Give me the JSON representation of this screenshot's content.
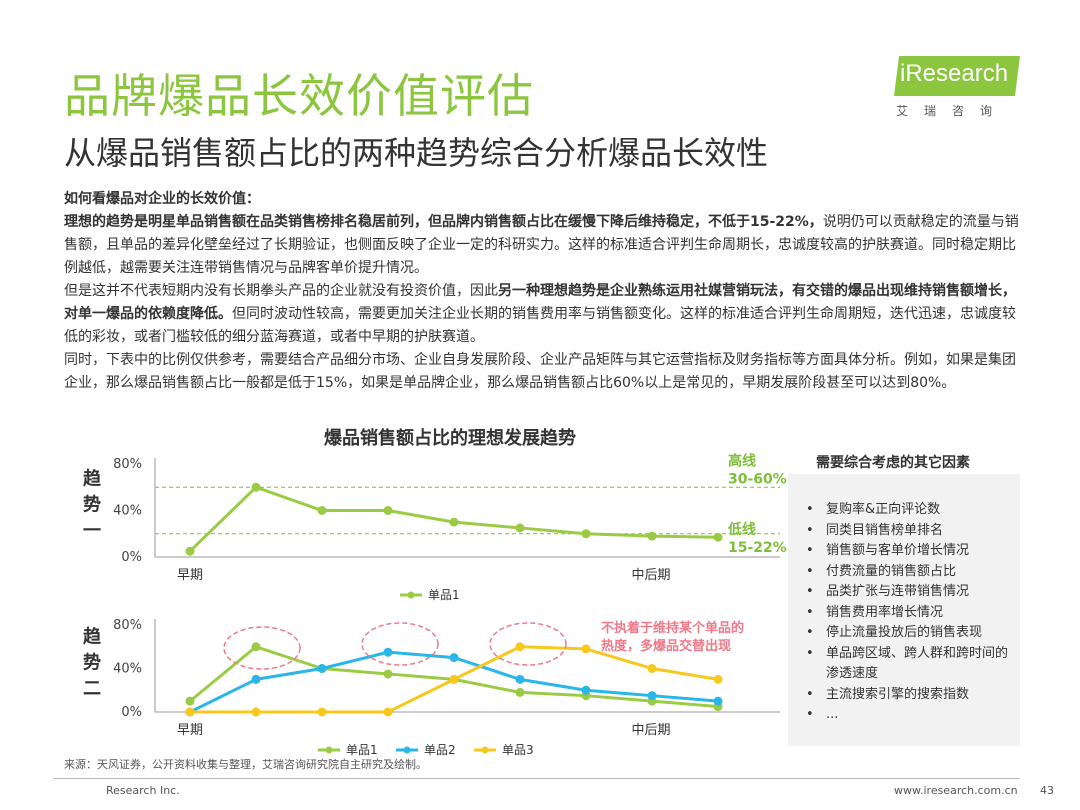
{
  "header": {
    "title": "品牌爆品长效价值评估",
    "subtitle": "从爆品销售额占比的两种趋势综合分析爆品长效性"
  },
  "logo": {
    "name": "iResearch",
    "tagline": "艾瑞咨询",
    "brand_color": "#8cc63e"
  },
  "body": {
    "heading": "如何看爆品对企业的长效价值：",
    "p1_bold": "理想的趋势是明星单品销售额在品类销售榜排名稳居前列，但品牌内销售额占比在缓慢下降后维持稳定，不低于15-22%，",
    "p1_rest": "说明仍可以贡献稳定的流量与销售额，且单品的差异化壁垒经过了长期验证，也侧面反映了企业一定的科研实力。这样的标准适合评判生命周期长，忠诚度较高的护肤赛道。同时稳定期比例越低，越需要关注连带销售情况与品牌客单价提升情况。",
    "p2_start": "但是这并不代表短期内没有长期拳头产品的企业就没有投资价值，因此",
    "p2_bold": "另一种理想趋势是企业熟练运用社媒营销玩法，有交错的爆品出现维持销售额增长，对单一爆品的依赖度降低。",
    "p2_rest": "但同时波动性较高，需要更加关注企业长期的销售费用率与销售额变化。这样的标准适合评判生命周期短，迭代迅速，忠诚度较低的彩妆，或者门槛较低的细分蓝海赛道，或者中早期的护肤赛道。",
    "p3": "同时，下表中的比例仅供参考，需要结合产品细分市场、企业自身发展阶段、企业产品矩阵与其它运营指标及财务指标等方面具体分析。例如，如果是集团企业，那么爆品销售额占比一般都是低于15%，如果是单品牌企业，那么爆品销售额占比60%以上是常见的，早期发展阶段甚至可以达到80%。"
  },
  "chart_data": {
    "type": "line",
    "title": "爆品销售额占比的理想发展趋势",
    "colors": {
      "s1": "#9bcb44",
      "s2": "#29b6e8",
      "s3": "#f7c81d",
      "annot": "#f07a8a",
      "band": "#7fbe3b"
    },
    "panels": [
      {
        "label": "趋势一",
        "x_start_label": "早期",
        "x_mid_label": "中后期",
        "yticks": [
          "80%",
          "40%",
          "0%"
        ],
        "ylim": [
          0,
          80
        ],
        "ref_lines": [
          60,
          20
        ],
        "annotations": [
          {
            "line1": "高线",
            "line2": "30-60%"
          },
          {
            "line1": "低线",
            "line2": "15-22%"
          }
        ],
        "series": [
          {
            "name": "单品1",
            "values": [
              5,
              60,
              40,
              40,
              30,
              25,
              20,
              18,
              17
            ]
          }
        ]
      },
      {
        "label": "趋势二",
        "x_start_label": "早期",
        "x_mid_label": "中后期",
        "yticks": [
          "80%",
          "40%",
          "0%"
        ],
        "ylim": [
          0,
          80
        ],
        "note_line1": "不执着于维持某个单品的",
        "note_line2": "热度，多爆品交替出现",
        "series": [
          {
            "name": "单品1",
            "values": [
              10,
              60,
              40,
              35,
              30,
              18,
              15,
              10,
              5
            ]
          },
          {
            "name": "单品2",
            "values": [
              0,
              30,
              40,
              55,
              50,
              30,
              20,
              15,
              10
            ]
          },
          {
            "name": "单品3",
            "values": [
              0,
              0,
              0,
              0,
              30,
              60,
              58,
              40,
              30
            ]
          }
        ]
      }
    ]
  },
  "side_panel": {
    "title": "需要综合考虑的其它因素",
    "items": [
      "复购率&正向评论数",
      "同类目销售榜单排名",
      "销售额与客单价增长情况",
      "付费流量的销售额占比",
      "品类扩张与连带销售情况",
      "销售费用率增长情况",
      "停止流量投放后的销售表现",
      "单品跨区域、跨人群和跨时间的渗透速度",
      "主流搜索引擎的搜索指数",
      "..."
    ]
  },
  "footer": {
    "source": "来源：天风证券，公开资料收集与整理，艾瑞咨询研究院自主研究及绘制。",
    "copyright": "Research Inc.",
    "url": "www.iresearch.com.cn",
    "page": "43"
  }
}
